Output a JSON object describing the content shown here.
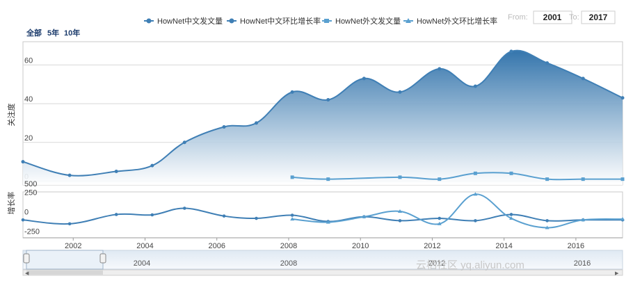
{
  "range_selector": {
    "buttons": [
      {
        "label": "全部"
      },
      {
        "label": "5年"
      },
      {
        "label": "10年"
      }
    ],
    "from_label": "From:",
    "from_value": "2001",
    "to_label": "To:",
    "to_value": "2017"
  },
  "navigator_labels": [
    "2004",
    "2008",
    "2012",
    "2016"
  ],
  "watermark": "云栖社区 yq.aliyun.com",
  "colors": {
    "primary_line": "#3f7fb5",
    "area_top": "#2a6ea8",
    "area_bottom": "#ffffff",
    "secondary_line": "#5aa0d0",
    "grid": "#d8d8d8"
  },
  "chart_data": [
    {
      "type": "area",
      "panel": "top",
      "ylabel": "关注度",
      "ylim": [
        -2,
        72
      ],
      "yticks": [
        0,
        20,
        40,
        60
      ],
      "xlim": [
        2000.6,
        2017.3
      ],
      "xticks": [
        2002,
        2004,
        2006,
        2008,
        2010,
        2012,
        2014,
        2016
      ],
      "series": [
        {
          "name": "HowNet中文发文量",
          "x": [
            2000.6,
            2001.9,
            2003.2,
            2004.2,
            2005.1,
            2006.2,
            2007.1,
            2008.1,
            2009.1,
            2010.1,
            2011.1,
            2012.2,
            2013.2,
            2014.2,
            2015.2,
            2016.2,
            2017.3
          ],
          "y": [
            10,
            3,
            5,
            8,
            20,
            28,
            30,
            46,
            42,
            53,
            46,
            58,
            49,
            67,
            61,
            53,
            43
          ]
        },
        {
          "name": "HowNet外文发文量",
          "x": [
            2008.1,
            2009.1,
            2011.1,
            2012.2,
            2013.2,
            2014.2,
            2015.2,
            2016.2,
            2017.3
          ],
          "y": [
            2,
            1,
            2,
            1,
            4,
            4,
            1,
            1,
            1
          ]
        }
      ]
    },
    {
      "type": "line",
      "panel": "bottom",
      "ylabel": "增长率",
      "ylim": [
        -280,
        310
      ],
      "yticks": [
        -250,
        0,
        250,
        500
      ],
      "xlim": [
        2000.6,
        2017.3
      ],
      "xticks": [
        2002,
        2004,
        2006,
        2008,
        2010,
        2012,
        2014,
        2016
      ],
      "series": [
        {
          "name": "HowNet中文环比增长率",
          "x": [
            2000.6,
            2001.9,
            2003.2,
            2004.2,
            2005.1,
            2006.2,
            2007.1,
            2008.1,
            2009.1,
            2010.1,
            2011.1,
            2012.2,
            2013.2,
            2014.2,
            2015.2,
            2016.2,
            2017.3
          ],
          "y": [
            -50,
            -100,
            20,
            15,
            100,
            0,
            -30,
            10,
            -70,
            -10,
            -60,
            -30,
            -60,
            20,
            -60,
            -50,
            -50
          ]
        },
        {
          "name": "HowNet外文环比增长率",
          "x": [
            2008.1,
            2009.1,
            2010.1,
            2011.1,
            2012.2,
            2013.2,
            2014.2,
            2015.2,
            2016.2,
            2017.3
          ],
          "y": [
            -40,
            -80,
            -10,
            60,
            -100,
            280,
            -30,
            -150,
            -50,
            -40
          ]
        }
      ]
    }
  ]
}
